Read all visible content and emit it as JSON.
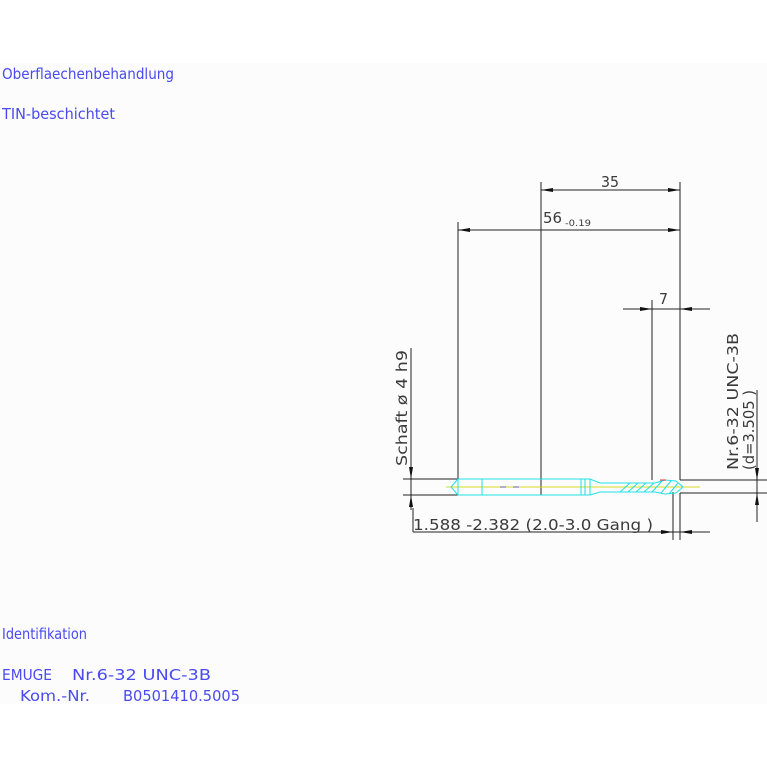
{
  "notes": {
    "surface_heading": "Oberflaechenbehandlung",
    "surface_value": "TIN-beschichtet",
    "ident_heading": "Identifikation",
    "ident_brand": "EMUGE",
    "ident_thread": "Nr.6-32  UNC-3B",
    "ident_kom_label": "Kom.-Nr.",
    "ident_kom_value": "B0501410.5005"
  },
  "drawing": {
    "dim_thread_length": "35",
    "dim_total_length": "56",
    "dim_total_tolerance": "-0.19",
    "dim_chamfer": "7",
    "shank_label": "Schaft  ø 4  h9",
    "thread_label": "Nr.6-32  UNC-3B",
    "thread_diameter": "(d=3.505 )",
    "core_label": "1.588  -2.382 (2.0-3.0  Gang  )"
  },
  "colors": {
    "notes": "#4a4af0",
    "tool_outline": "#22e0e8",
    "centerline": "#d8d820",
    "dimension": "#222222"
  }
}
